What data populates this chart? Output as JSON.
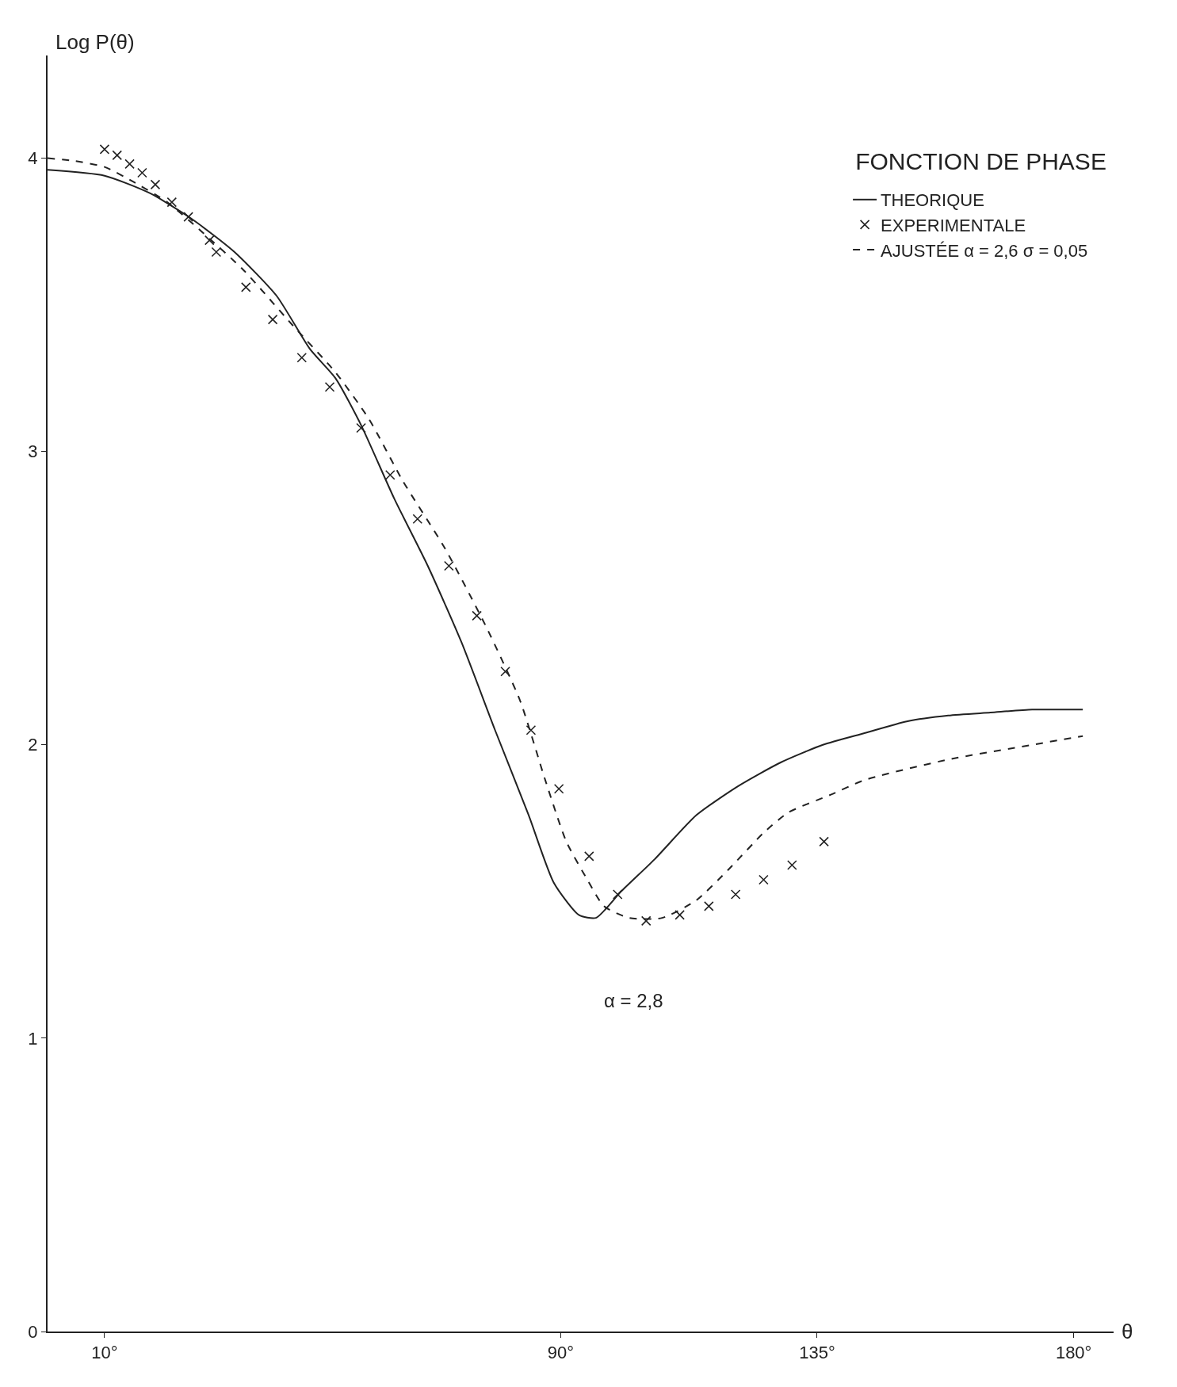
{
  "chart_data": {
    "type": "line",
    "title": "FONCTION DE PHASE",
    "xlabel": "θ",
    "ylabel": "Log P(θ)",
    "annotations": [
      "α = 2,8"
    ],
    "xlim": [
      0,
      187
    ],
    "ylim": [
      0,
      4.35
    ],
    "xticks": [
      {
        "value": 10,
        "label": "10°"
      },
      {
        "value": 90,
        "label": "90°"
      },
      {
        "value": 135,
        "label": "135°"
      },
      {
        "value": 180,
        "label": "180°"
      }
    ],
    "yticks": [
      0,
      1,
      2,
      3,
      4
    ],
    "legend": "top right",
    "series": [
      {
        "name": "THEORIQUE",
        "color": "#222222",
        "line_style": "solid",
        "marker": "none",
        "x": [
          0,
          10,
          18,
          25.5,
          32.8,
          40.2,
          46,
          50.5,
          55,
          60.8,
          66.7,
          72.6,
          78.5,
          84.4,
          88.8,
          93.2,
          96.2,
          100.6,
          106.5,
          113.8,
          121.2,
          128.6,
          136,
          143.3,
          150.7,
          158,
          165.4,
          172.7,
          181.6
        ],
        "values": [
          3.96,
          3.94,
          3.88,
          3.79,
          3.68,
          3.53,
          3.35,
          3.25,
          3.09,
          2.84,
          2.61,
          2.35,
          2.05,
          1.76,
          1.53,
          1.42,
          1.41,
          1.5,
          1.61,
          1.76,
          1.86,
          1.94,
          2.0,
          2.04,
          2.08,
          2.1,
          2.11,
          2.12,
          2.12
        ]
      },
      {
        "name": "EXPERIMENTALE",
        "color": "#222222",
        "type": "scatter",
        "marker": "cross",
        "x": [
          10,
          12.2,
          14.4,
          16.6,
          18.9,
          21.8,
          24.7,
          28.4,
          29.6,
          34.8,
          39.5,
          44.6,
          49.5,
          55,
          60.1,
          64.9,
          70.4,
          75.3,
          80.3,
          84.8,
          89.7,
          95,
          100,
          105,
          110.9,
          116,
          120.7,
          125.6,
          130.6,
          136.2
        ],
        "values": [
          4.03,
          4.01,
          3.98,
          3.95,
          3.91,
          3.85,
          3.8,
          3.72,
          3.68,
          3.56,
          3.45,
          3.32,
          3.22,
          3.08,
          2.92,
          2.77,
          2.61,
          2.44,
          2.25,
          2.05,
          1.85,
          1.62,
          1.49,
          1.4,
          1.42,
          1.45,
          1.49,
          1.54,
          1.59,
          1.67
        ]
      },
      {
        "name": "AJUSTÉE α = 2,6 σ = 0,05",
        "color": "#222222",
        "line_style": "dashed",
        "marker": "none",
        "x": [
          0,
          4.9,
          10,
          15,
          21,
          27,
          34.3,
          43,
          50.5,
          56.4,
          62.3,
          69.7,
          77,
          82.9,
          87.3,
          91,
          94.7,
          97.6,
          102,
          107.8,
          113.8,
          119.7,
          125.6,
          130,
          137.4,
          143.3,
          158,
          172.7,
          181.6
        ],
        "values": [
          4.0,
          3.99,
          3.97,
          3.92,
          3.85,
          3.75,
          3.62,
          3.43,
          3.27,
          3.11,
          2.9,
          2.67,
          2.4,
          2.15,
          1.88,
          1.67,
          1.54,
          1.45,
          1.41,
          1.41,
          1.47,
          1.58,
          1.7,
          1.77,
          1.83,
          1.88,
          1.95,
          2.0,
          2.03
        ]
      }
    ]
  }
}
